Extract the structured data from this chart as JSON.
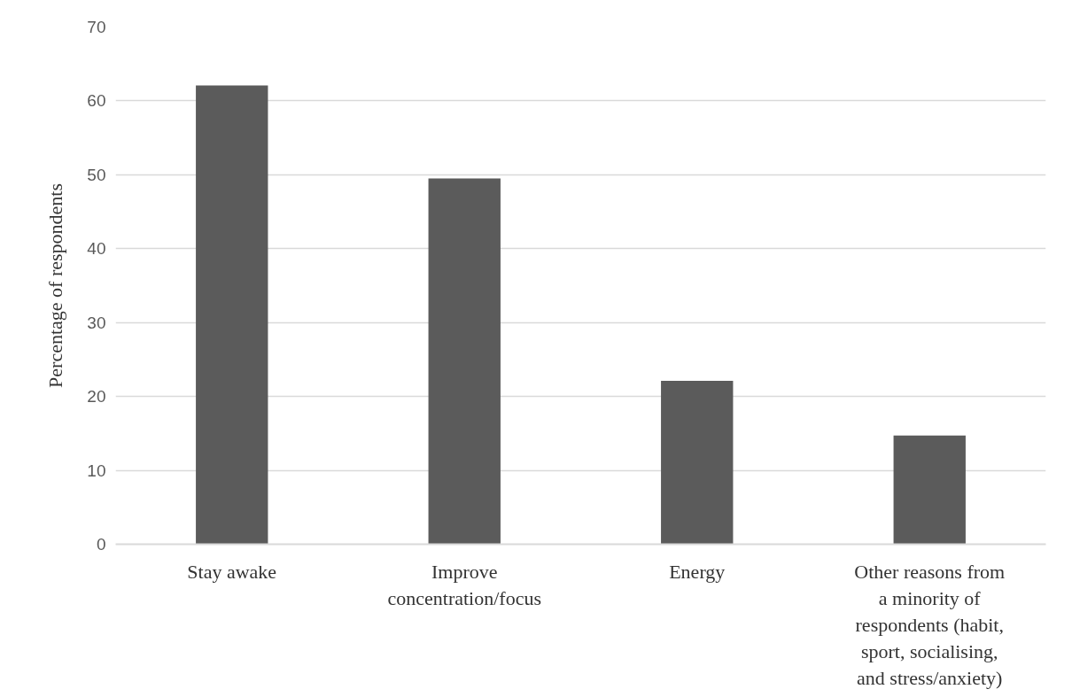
{
  "chart_data": {
    "type": "bar",
    "ylabel": "Percentage of respondents",
    "categories": [
      "Stay awake",
      "Improve concentration/focus",
      "Energy",
      "Other reasons from a minority of respondents (habit, sport, socialising, and stress/anxiety)"
    ],
    "values": [
      62.1,
      49.5,
      22.1,
      14.7
    ],
    "color": "#5b5b5b",
    "ylim": [
      0,
      70
    ],
    "yticks": [
      0,
      10,
      20,
      30,
      40,
      50,
      60,
      70
    ],
    "grid": "y"
  }
}
